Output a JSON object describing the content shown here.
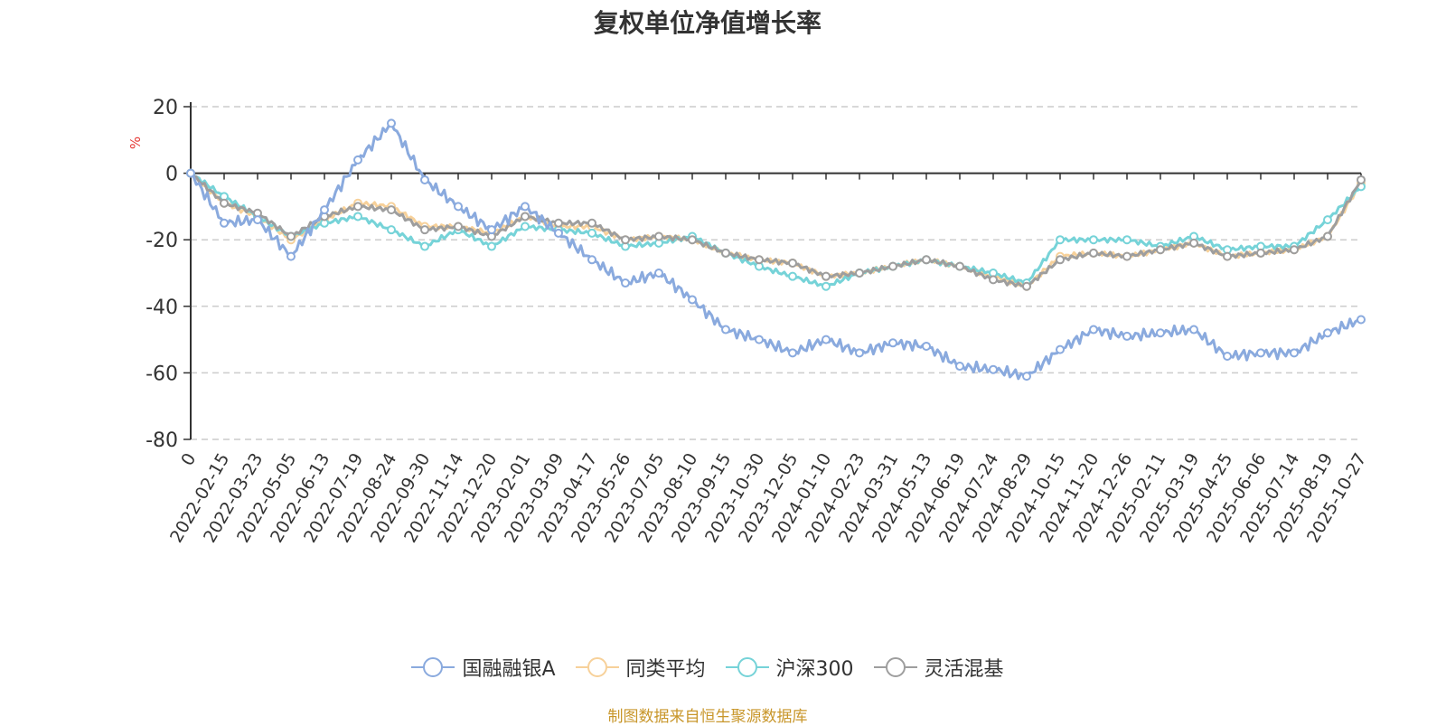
{
  "title": "复权单位净值增长率",
  "source": "制图数据来自恒生聚源数据库",
  "colors": {
    "fund": "#8aaade",
    "peer_avg": "#f7d19a",
    "csi300": "#76d3d8",
    "flexible_mix": "#9e9e9e",
    "axis": "#333333",
    "grid": "#cccccc",
    "unit": "#e53935",
    "source": "#c8962a"
  },
  "chart_data": {
    "type": "line",
    "title": "复权单位净值增长率",
    "ylabel": "%",
    "ylim": [
      -80,
      20
    ],
    "yticks": [
      20,
      0,
      -20,
      -40,
      -60,
      -80
    ],
    "grid": true,
    "legend_position": "bottom-center",
    "x_tick_labels": [
      "0",
      "2022-02-15",
      "2022-03-23",
      "2022-05-05",
      "2022-06-13",
      "2022-07-19",
      "2022-08-24",
      "2022-09-30",
      "2022-11-14",
      "2022-12-20",
      "2023-02-01",
      "2023-03-09",
      "2023-04-17",
      "2023-05-26",
      "2023-07-05",
      "2023-08-10",
      "2023-09-15",
      "2023-10-30",
      "2023-12-05",
      "2024-01-10",
      "2024-02-23",
      "2024-03-31",
      "2024-05-13",
      "2024-06-19",
      "2024-07-24",
      "2024-08-29",
      "2024-10-15",
      "2024-11-20",
      "2024-12-26",
      "2025-02-11",
      "2025-03-19",
      "2025-04-25",
      "2025-06-06",
      "2025-07-14",
      "2025-08-19",
      "2025-10-27"
    ],
    "x": [
      "0",
      "2022-02-15",
      "2022-03-23",
      "2022-05-05",
      "2022-06-13",
      "2022-07-19",
      "2022-08-24",
      "2022-09-30",
      "2022-11-14",
      "2022-12-20",
      "2023-02-01",
      "2023-03-09",
      "2023-04-17",
      "2023-05-26",
      "2023-07-05",
      "2023-08-10",
      "2023-09-15",
      "2023-10-30",
      "2023-12-05",
      "2024-01-10",
      "2024-02-23",
      "2024-03-31",
      "2024-05-13",
      "2024-06-19",
      "2024-07-24",
      "2024-08-29",
      "2024-10-15",
      "2024-11-20",
      "2024-12-26",
      "2025-02-11",
      "2025-03-19",
      "2025-04-25",
      "2025-06-06",
      "2025-07-14",
      "2025-08-19",
      "2025-10-27"
    ],
    "series": [
      {
        "name": "国融融银A",
        "color": "#8aaade",
        "values": [
          0,
          -15,
          -14,
          -25,
          -11,
          4,
          15,
          -2,
          -10,
          -17,
          -10,
          -18,
          -26,
          -33,
          -30,
          -38,
          -47,
          -50,
          -54,
          -50,
          -54,
          -51,
          -52,
          -58,
          -59,
          -61,
          -53,
          -47,
          -49,
          -48,
          -47,
          -55,
          -54,
          -54,
          -48,
          -44
        ]
      },
      {
        "name": "同类平均",
        "color": "#f7d19a",
        "values": [
          0,
          -9,
          -13,
          -20,
          -14,
          -9,
          -10,
          -16,
          -16,
          -18,
          -13,
          -16,
          -16,
          -20,
          -19,
          -20,
          -24,
          -26,
          -27,
          -31,
          -30,
          -28,
          -26,
          -28,
          -31,
          -34,
          -25,
          -24,
          -25,
          -23,
          -21,
          -25,
          -24,
          -23,
          -19,
          -3
        ]
      },
      {
        "name": "沪深300",
        "color": "#76d3d8",
        "values": [
          0,
          -7,
          -13,
          -19,
          -15,
          -13,
          -17,
          -22,
          -17,
          -22,
          -16,
          -17,
          -18,
          -22,
          -21,
          -19,
          -24,
          -28,
          -31,
          -34,
          -30,
          -28,
          -26,
          -28,
          -30,
          -33,
          -20,
          -20,
          -20,
          -22,
          -19,
          -23,
          -22,
          -22,
          -14,
          -4
        ]
      },
      {
        "name": "灵活混基",
        "color": "#9e9e9e",
        "values": [
          0,
          -9,
          -12,
          -19,
          -13,
          -10,
          -11,
          -17,
          -16,
          -19,
          -13,
          -15,
          -15,
          -20,
          -19,
          -20,
          -24,
          -26,
          -27,
          -31,
          -30,
          -28,
          -26,
          -28,
          -32,
          -34,
          -26,
          -24,
          -25,
          -23,
          -21,
          -25,
          -24,
          -23,
          -19,
          -2
        ]
      }
    ]
  }
}
